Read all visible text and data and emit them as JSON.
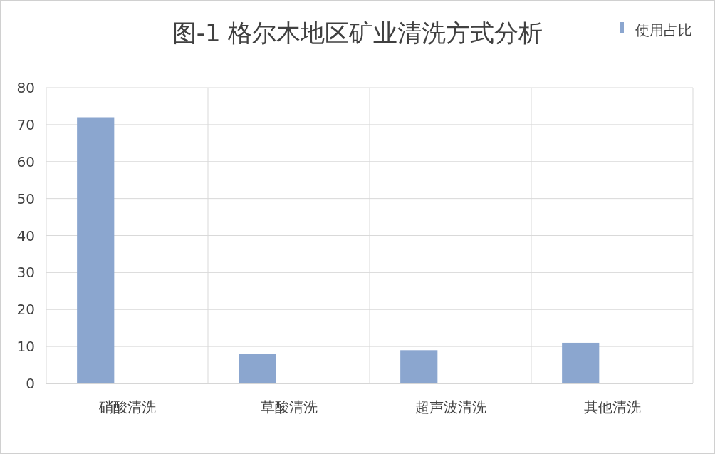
{
  "chart_data": {
    "type": "bar",
    "title": "图-1 格尔木地区矿业清洗方式分析",
    "categories": [
      "硝酸清洗",
      "草酸清洗",
      "超声波清洗",
      "其他清洗"
    ],
    "series": [
      {
        "name": "使用占比",
        "color": "#8ba6cf",
        "values": [
          72,
          8,
          9,
          11
        ]
      }
    ],
    "ylim": [
      0,
      80
    ],
    "yticks": [
      0,
      10,
      20,
      30,
      40,
      50,
      60,
      70,
      80
    ],
    "grid": true,
    "legend": "top right"
  }
}
